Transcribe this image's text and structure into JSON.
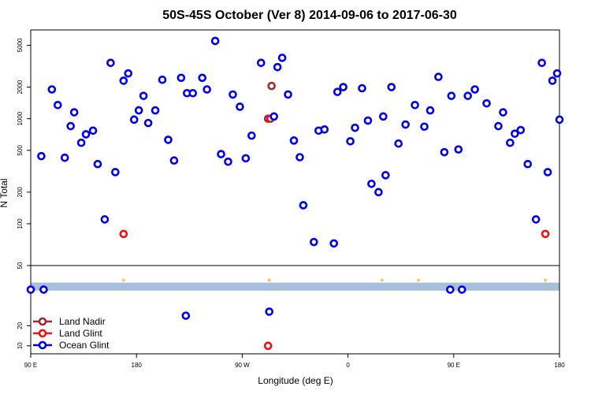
{
  "chart_data": {
    "type": "scatter",
    "title": "50S-45S October (Ver 8)   2014-09-06 to 2017-06-30",
    "xlabel": "Longitude (deg E)",
    "ylabel": "N Total",
    "x_ticks": [
      {
        "value": 90,
        "label": "90 E"
      },
      {
        "value": 180,
        "label": "180"
      },
      {
        "value": 270,
        "label": "90 W"
      },
      {
        "value": 360,
        "label": "0"
      },
      {
        "value": 450,
        "label": "90 E"
      },
      {
        "value": 540,
        "label": "180"
      }
    ],
    "xlim": [
      90,
      540
    ],
    "top_panel": {
      "scale": "log",
      "ylim": [
        40,
        7000
      ],
      "y_ticks": [
        100,
        200,
        500,
        1000,
        2000,
        5000
      ]
    },
    "bottom_panel": {
      "scale": "linear",
      "ylim": [
        6,
        50
      ],
      "y_ticks": [
        10,
        20,
        50
      ],
      "band_color": "#a8bfdc",
      "marker_color": "#f5c76a"
    },
    "colors": {
      "land_nadir": "#9b2c2c",
      "land_glint": "#ee1111",
      "ocean_glint": "#0000ee"
    },
    "series": [
      {
        "name": "Land Nadir",
        "key": "land_nadir",
        "top": [
          [
            292,
            1000
          ],
          [
            295,
            2050
          ]
        ],
        "bottom": []
      },
      {
        "name": "Land Glint",
        "key": "land_glint",
        "top": [
          [
            169,
            80
          ],
          [
            294,
            1000
          ],
          [
            528,
            80
          ]
        ],
        "bottom": [
          [
            292,
            10
          ]
        ]
      },
      {
        "name": "Ocean Glint",
        "key": "ocean_glint",
        "top": [
          [
            99,
            440
          ],
          [
            108,
            1900
          ],
          [
            113,
            1350
          ],
          [
            119,
            425
          ],
          [
            124,
            850
          ],
          [
            127,
            1150
          ],
          [
            133,
            590
          ],
          [
            137,
            710
          ],
          [
            143,
            770
          ],
          [
            147,
            370
          ],
          [
            153,
            110
          ],
          [
            158,
            3400
          ],
          [
            162,
            310
          ],
          [
            169,
            2300
          ],
          [
            173,
            2700
          ],
          [
            178,
            980
          ],
          [
            182,
            1200
          ],
          [
            186,
            1650
          ],
          [
            190,
            910
          ],
          [
            196,
            1200
          ],
          [
            202,
            2350
          ],
          [
            207,
            630
          ],
          [
            212,
            400
          ],
          [
            218,
            2450
          ],
          [
            223,
            1750
          ],
          [
            228,
            1750
          ],
          [
            236,
            2450
          ],
          [
            240,
            1900
          ],
          [
            247,
            5500
          ],
          [
            252,
            460
          ],
          [
            258,
            390
          ],
          [
            262,
            1700
          ],
          [
            268,
            1300
          ],
          [
            273,
            420
          ],
          [
            278,
            690
          ],
          [
            286,
            3400
          ],
          [
            297,
            1050
          ],
          [
            300,
            3100
          ],
          [
            304,
            3800
          ],
          [
            309,
            1700
          ],
          [
            314,
            620
          ],
          [
            319,
            430
          ],
          [
            322,
            150
          ],
          [
            331,
            67
          ],
          [
            335,
            770
          ],
          [
            340,
            790
          ],
          [
            348,
            65
          ],
          [
            351,
            1800
          ],
          [
            356,
            2000
          ],
          [
            362,
            610
          ],
          [
            366,
            820
          ],
          [
            372,
            1950
          ],
          [
            377,
            960
          ],
          [
            380,
            240
          ],
          [
            386,
            200
          ],
          [
            390,
            1050
          ],
          [
            392,
            290
          ],
          [
            397,
            2000
          ],
          [
            403,
            580
          ],
          [
            409,
            880
          ],
          [
            417,
            1350
          ],
          [
            425,
            840
          ],
          [
            430,
            1200
          ],
          [
            437,
            2500
          ],
          [
            442,
            480
          ],
          [
            448,
            1650
          ],
          [
            454,
            510
          ],
          [
            462,
            1650
          ],
          [
            468,
            1900
          ],
          [
            478,
            1400
          ],
          [
            488,
            850
          ],
          [
            492,
            1150
          ],
          [
            498,
            590
          ],
          [
            502,
            720
          ],
          [
            507,
            780
          ],
          [
            513,
            370
          ],
          [
            520,
            110
          ],
          [
            525,
            3400
          ],
          [
            530,
            310
          ],
          [
            534,
            2300
          ],
          [
            538,
            2700
          ],
          [
            540,
            980
          ]
        ],
        "bottom": [
          [
            90,
            38
          ],
          [
            101,
            38
          ],
          [
            222,
            25
          ],
          [
            293,
            27
          ],
          [
            447,
            38
          ],
          [
            457,
            38
          ]
        ]
      }
    ],
    "bottom_markers": [
      169,
      293,
      293,
      389,
      420,
      528
    ],
    "legend": {
      "placement": "bottom-left"
    }
  }
}
